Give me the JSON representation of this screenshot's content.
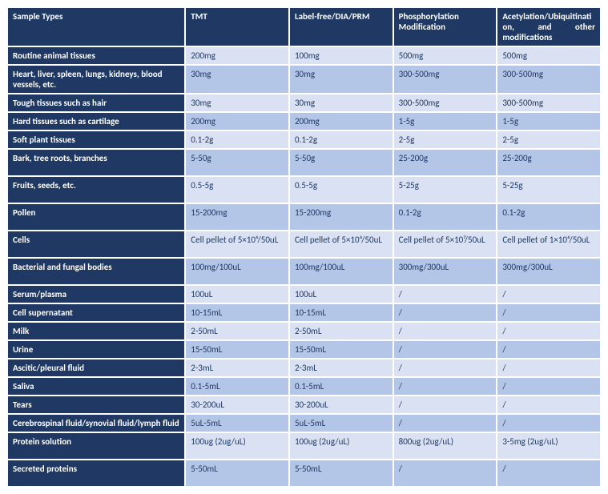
{
  "table": {
    "columns": [
      "Sample Types",
      "TMT",
      "Label-free/DIA/PRM",
      "Phosphorylation Modification",
      "Acetylation/Ubiquitination, and other modifications"
    ],
    "rows": [
      {
        "label": "Routine animal tissues",
        "cells": [
          "200mg",
          "100mg",
          "500mg",
          "500mg"
        ],
        "band": "light",
        "h": ""
      },
      {
        "label": "Heart, liver, spleen, lungs, kidneys, blood vessels, etc.",
        "cells": [
          "30mg",
          "30mg",
          "300-500mg",
          "300-500mg"
        ],
        "band": "dark",
        "h": "tall"
      },
      {
        "label": "Tough tissues such as hair",
        "cells": [
          "30mg",
          "30mg",
          "300-500mg",
          "300-500mg"
        ],
        "band": "light",
        "h": ""
      },
      {
        "label": "Hard tissues such as cartilage",
        "cells": [
          "200mg",
          "200mg",
          "1-5g",
          "1-5g"
        ],
        "band": "dark",
        "h": ""
      },
      {
        "label": "Soft plant tissues",
        "cells": [
          "0.1-2g",
          "0.1-2g",
          "2-5g",
          "2-5g"
        ],
        "band": "light",
        "h": ""
      },
      {
        "label": "Bark, tree roots, branches",
        "cells": [
          "5-50g",
          "5-50g",
          "25-200g",
          "25-200g"
        ],
        "band": "dark",
        "h": "tall"
      },
      {
        "label": "Fruits, seeds, etc.",
        "cells": [
          "0.5-5g",
          "0.5-5g",
          "5-25g",
          "5-25g"
        ],
        "band": "light",
        "h": "tall"
      },
      {
        "label": "Pollen",
        "cells": [
          "15-200mg",
          "15-200mg",
          "0.1-2g",
          "0.1-2g"
        ],
        "band": "dark",
        "h": "tall"
      },
      {
        "label": "Cells",
        "cells": [
          "Cell pellet of 5×10⁶/50uL",
          "Cell pellet of 5×10⁶/50uL",
          "Cell pellet of 5×10⁷/50uL",
          "Cell pellet of 1×10⁶/50uL"
        ],
        "band": "light",
        "h": "tall"
      },
      {
        "label": "Bacterial and fungal bodies",
        "cells": [
          "100mg/100uL",
          "100mg/100uL",
          "300mg/300uL",
          "300mg/300uL"
        ],
        "band": "dark",
        "h": "tall"
      },
      {
        "label": "Serum/plasma",
        "cells": [
          "100uL",
          "100uL",
          "/",
          "/"
        ],
        "band": "light",
        "h": ""
      },
      {
        "label": "Cell supernatant",
        "cells": [
          "10-15mL",
          "10-15mL",
          "/",
          "/"
        ],
        "band": "dark",
        "h": ""
      },
      {
        "label": "Milk",
        "cells": [
          "2-50mL",
          "2-50mL",
          "/",
          "/"
        ],
        "band": "light",
        "h": ""
      },
      {
        "label": "Urine",
        "cells": [
          "15-50mL",
          "15-50mL",
          "/",
          "/"
        ],
        "band": "dark",
        "h": ""
      },
      {
        "label": "Ascitic/pleural fluid",
        "cells": [
          "2-3mL",
          "2-3mL",
          "/",
          "/"
        ],
        "band": "light",
        "h": ""
      },
      {
        "label": "Saliva",
        "cells": [
          "0.1-5mL",
          "0.1-5mL",
          "/",
          "/"
        ],
        "band": "dark",
        "h": ""
      },
      {
        "label": "Tears",
        "cells": [
          "30-200uL",
          "30-200uL",
          "/",
          "/"
        ],
        "band": "light",
        "h": ""
      },
      {
        "label": "Cerebrospinal fluid/synovial fluid/lymph fluid",
        "cells": [
          "5uL-5mL",
          "5uL-5mL",
          "/",
          "/"
        ],
        "band": "dark",
        "h": ""
      },
      {
        "label": "Protein solution",
        "cells": [
          "100ug (2ug/uL)",
          "100ug (2ug/uL)",
          "800ug (2ug/uL)",
          "3-5mg (2ug/uL)"
        ],
        "band": "light",
        "h": "tall"
      },
      {
        "label": "Secreted proteins",
        "cells": [
          "5-50mL",
          "5-50mL",
          "/",
          "/"
        ],
        "band": "dark",
        "h": "tall"
      }
    ],
    "colors": {
      "header_bg": "#1f3864",
      "header_text": "#ffffff",
      "band_light": "#d9e1f2",
      "band_dark": "#b4c6e7",
      "cell_text": "#1f3864",
      "border": "#ffffff"
    },
    "font_size_pt": 8
  }
}
